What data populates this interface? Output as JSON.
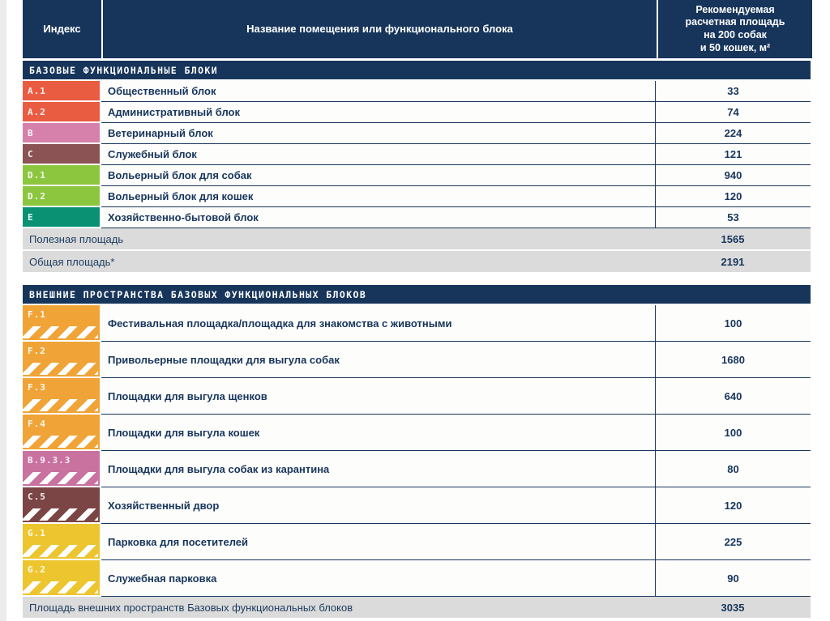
{
  "table": {
    "header": {
      "index": "Индекс",
      "name": "Название помещения или функционального блока",
      "area_lines": [
        "Рекомендуемая",
        "расчетная площадь",
        "на 200 собак",
        "и 50 кошек, м²"
      ]
    },
    "colors": {
      "navy": "#17355B",
      "summary_gray": "#DBDBDB"
    },
    "sections": [
      {
        "title": "БАЗОВЫЕ ФУНКЦИОНАЛЬНЫЕ БЛОКИ",
        "rows": [
          {
            "index": "A.1",
            "color": "#E95C41",
            "name": "Общественный блок",
            "value": "33"
          },
          {
            "index": "A.2",
            "color": "#E95C41",
            "name": "Административный блок",
            "value": "74"
          },
          {
            "index": "B",
            "color": "#D581AC",
            "name": "Ветеринарный блок",
            "value": "224"
          },
          {
            "index": "C",
            "color": "#8B5353",
            "name": "Служебный блок",
            "value": "121"
          },
          {
            "index": "D.1",
            "color": "#8CC63F",
            "name": "Вольерный блок для собак",
            "value": "940"
          },
          {
            "index": "D.2",
            "color": "#8CC63F",
            "name": "Вольерный блок для кошек",
            "value": "120"
          },
          {
            "index": "E",
            "color": "#0A9174",
            "name": "Хозяйственно-бытовой блок",
            "value": "53"
          }
        ],
        "summary": [
          {
            "name": "Полезная площадь",
            "value": "1565"
          },
          {
            "name": "Общая площадь*",
            "value": "2191"
          }
        ]
      },
      {
        "title": "ВНЕШНИЕ ПРОСТРАНСТВА БАЗОВЫХ ФУНКЦИОНАЛЬНЫХ БЛОКОВ",
        "rows": [
          {
            "index": "F.1",
            "color": "#F0A437",
            "name": "Фестивальная площадка/площадка для знакомства с животными",
            "value": "100"
          },
          {
            "index": "F.2",
            "color": "#F0A437",
            "name": "Привольерные площадки для выгула собак",
            "value": "1680"
          },
          {
            "index": "F.3",
            "color": "#F0A437",
            "name": "Площадки для выгула щенков",
            "value": "640"
          },
          {
            "index": "F.4",
            "color": "#F0A437",
            "name": "Площадки для выгула кошек",
            "value": "100"
          },
          {
            "index": "B.9.3.3",
            "color": "#C9719F",
            "name": "Площадки для выгула собак из карантина",
            "value": "80"
          },
          {
            "index": "C.5",
            "color": "#7B4545",
            "name": "Хозяйственный двор",
            "value": "120"
          },
          {
            "index": "G.1",
            "color": "#ECC52F",
            "name": "Парковка для посетителей",
            "value": "225"
          },
          {
            "index": "G.2",
            "color": "#ECC52F",
            "name": "Служебная парковка",
            "value": "90"
          }
        ],
        "summary": [
          {
            "name": "Площадь внешних пространств Базовых функциональных блоков",
            "value": "3035"
          }
        ]
      }
    ]
  }
}
